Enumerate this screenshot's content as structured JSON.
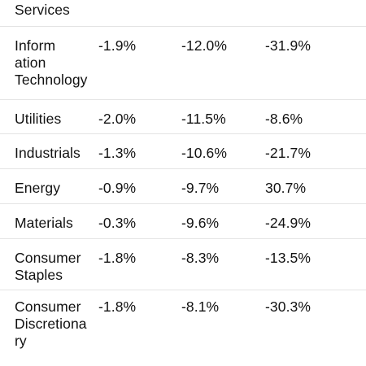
{
  "rows": [
    {
      "sector": "Services",
      "v1": "",
      "v2": "",
      "v3": ""
    },
    {
      "sector": "Inform\nation\nTechnology",
      "v1": "-1.9%",
      "v2": "-12.0%",
      "v3": "-31.9%"
    },
    {
      "sector": "Utilities",
      "v1": "-2.0%",
      "v2": "-11.5%",
      "v3": "-8.6%"
    },
    {
      "sector": "Industrials",
      "v1": "-1.3%",
      "v2": "-10.6%",
      "v3": "-21.7%"
    },
    {
      "sector": "Energy",
      "v1": "-0.9%",
      "v2": "-9.7%",
      "v3": "30.7%"
    },
    {
      "sector": "Materials",
      "v1": "-0.3%",
      "v2": "-9.6%",
      "v3": "-24.9%"
    },
    {
      "sector": "Consumer\nStaples",
      "v1": "-1.8%",
      "v2": "-8.3%",
      "v3": "-13.5%"
    },
    {
      "sector": "Consumer\nDiscretiona\nry",
      "v1": "-1.8%",
      "v2": "-8.1%",
      "v3": "-30.3%"
    }
  ]
}
